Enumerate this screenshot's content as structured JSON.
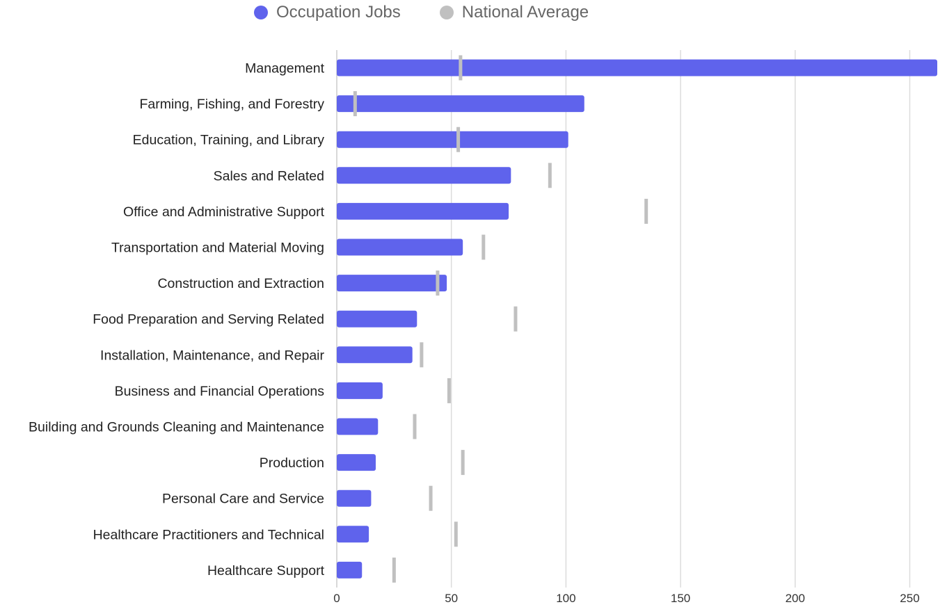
{
  "legend": {
    "items": [
      {
        "label": "Occupation Jobs",
        "color": "#5f63ec"
      },
      {
        "label": "National Average",
        "color": "#c0c0c0"
      }
    ]
  },
  "chart_data": {
    "type": "bar",
    "orientation": "horizontal",
    "categories": [
      "Management",
      "Farming, Fishing, and Forestry",
      "Education, Training, and Library",
      "Sales and Related",
      "Office and Administrative Support",
      "Transportation and Material Moving",
      "Construction and Extraction",
      "Food Preparation and Serving Related",
      "Installation, Maintenance, and Repair",
      "Business and Financial Operations",
      "Building and Grounds Cleaning and Maintenance",
      "Production",
      "Personal Care and Service",
      "Healthcare Practitioners and Technical",
      "Healthcare Support"
    ],
    "series": [
      {
        "name": "Occupation Jobs",
        "color": "#5f63ec",
        "values": [
          262,
          108,
          101,
          76,
          75,
          55,
          48,
          35,
          33,
          20,
          18,
          17,
          15,
          14,
          11
        ]
      },
      {
        "name": "National Average",
        "color": "#c0c0c0",
        "marker": "tick",
        "values": [
          54,
          8,
          53,
          93,
          135,
          64,
          44,
          78,
          37,
          49,
          34,
          55,
          41,
          52,
          25
        ]
      }
    ],
    "xlim": [
      0,
      262
    ],
    "xticks": [
      0,
      50,
      100,
      150,
      200,
      250
    ],
    "grid": true,
    "legend_position": "top"
  }
}
